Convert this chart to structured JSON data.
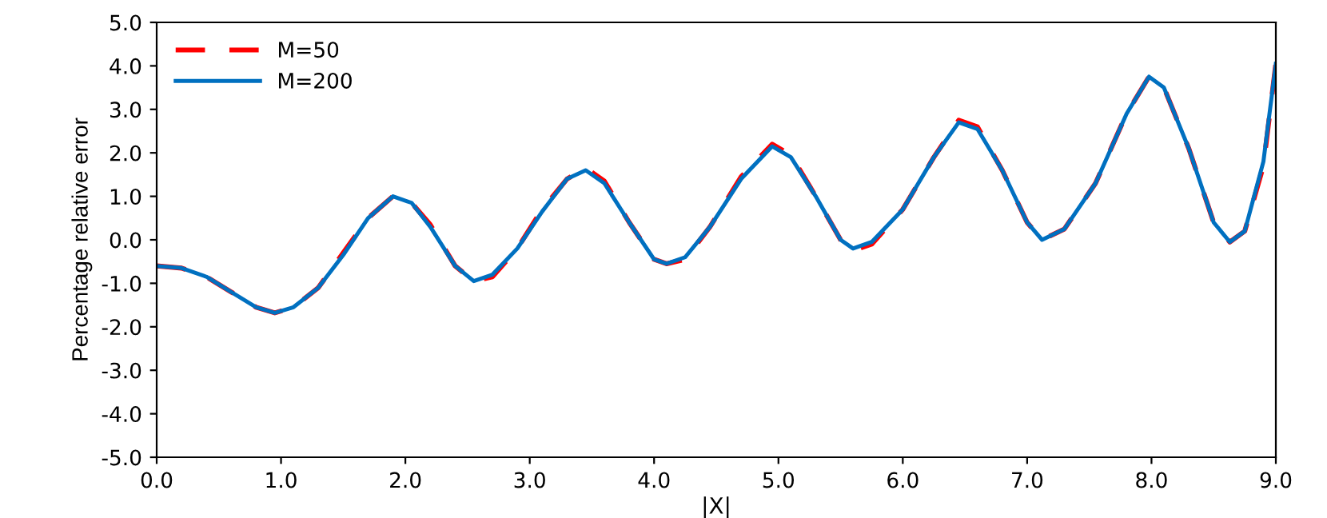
{
  "chart_data": {
    "type": "line",
    "xlabel": "|X|",
    "ylabel": "Percentage relative error",
    "xlim": [
      0,
      9
    ],
    "ylim": [
      -5,
      5
    ],
    "xticks": [
      {
        "value": 0,
        "label": "0.0"
      },
      {
        "value": 1,
        "label": "1.0"
      },
      {
        "value": 2,
        "label": "2.0"
      },
      {
        "value": 3,
        "label": "3.0"
      },
      {
        "value": 4,
        "label": "4.0"
      },
      {
        "value": 5,
        "label": "5.0"
      },
      {
        "value": 6,
        "label": "6.0"
      },
      {
        "value": 7,
        "label": "7.0"
      },
      {
        "value": 8,
        "label": "8.0"
      },
      {
        "value": 9,
        "label": "9.0"
      }
    ],
    "yticks": [
      {
        "value": -5,
        "label": "-5.0"
      },
      {
        "value": -4,
        "label": "-4.0"
      },
      {
        "value": -3,
        "label": "-3.0"
      },
      {
        "value": -2,
        "label": "-2.0"
      },
      {
        "value": -1,
        "label": "-1.0"
      },
      {
        "value": 0,
        "label": "0.0"
      },
      {
        "value": 1,
        "label": "1.0"
      },
      {
        "value": 2,
        "label": "2.0"
      },
      {
        "value": 3,
        "label": "3.0"
      },
      {
        "value": 4,
        "label": "4.0"
      },
      {
        "value": 5,
        "label": "5.0"
      }
    ],
    "grid": false,
    "legend": "top left",
    "marker": "none",
    "x": [
      0.0,
      0.2,
      0.4,
      0.6,
      0.8,
      0.95,
      1.1,
      1.3,
      1.5,
      1.7,
      1.9,
      2.05,
      2.2,
      2.4,
      2.55,
      2.7,
      2.9,
      3.1,
      3.3,
      3.45,
      3.6,
      3.8,
      4.0,
      4.1,
      4.25,
      4.45,
      4.7,
      4.95,
      5.1,
      5.3,
      5.5,
      5.6,
      5.75,
      6.0,
      6.25,
      6.45,
      6.6,
      6.8,
      7.0,
      7.12,
      7.3,
      7.55,
      7.8,
      7.98,
      8.1,
      8.3,
      8.5,
      8.63,
      8.75,
      8.9,
      9.0
    ],
    "series": [
      {
        "name": "M=50",
        "color": "#ff0000",
        "line_style": "dashed",
        "values": [
          -0.6,
          -0.65,
          -0.85,
          -1.2,
          -1.55,
          -1.68,
          -1.55,
          -1.1,
          -0.3,
          0.5,
          1.0,
          0.85,
          0.35,
          -0.6,
          -0.95,
          -0.85,
          -0.2,
          0.7,
          1.4,
          1.65,
          1.35,
          0.4,
          -0.45,
          -0.55,
          -0.45,
          0.3,
          1.45,
          2.2,
          1.95,
          1.0,
          0.0,
          -0.25,
          -0.1,
          0.7,
          1.9,
          2.75,
          2.6,
          1.6,
          0.4,
          0.0,
          0.25,
          1.3,
          2.9,
          3.75,
          3.5,
          2.1,
          0.4,
          -0.05,
          0.2,
          1.7,
          4.05
        ]
      },
      {
        "name": "M=200",
        "color": "#0070c0",
        "line_style": "solid",
        "values": [
          -0.6,
          -0.65,
          -0.85,
          -1.2,
          -1.55,
          -1.68,
          -1.55,
          -1.1,
          -0.35,
          0.5,
          1.0,
          0.85,
          0.3,
          -0.6,
          -0.95,
          -0.8,
          -0.2,
          0.65,
          1.4,
          1.6,
          1.3,
          0.4,
          -0.45,
          -0.55,
          -0.4,
          0.3,
          1.4,
          2.15,
          1.9,
          1.0,
          0.0,
          -0.2,
          -0.05,
          0.7,
          1.9,
          2.7,
          2.55,
          1.6,
          0.4,
          0.0,
          0.25,
          1.3,
          2.9,
          3.75,
          3.5,
          2.1,
          0.4,
          -0.05,
          0.2,
          1.8,
          4.05
        ]
      }
    ]
  }
}
